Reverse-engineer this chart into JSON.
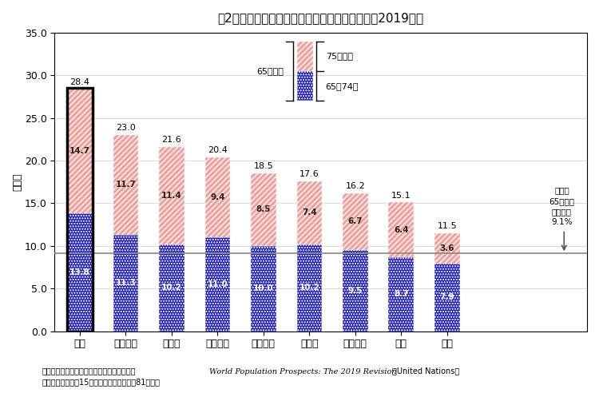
{
  "title": "図2　主要国における高齢者人口の割合の比較（2019年）",
  "ylabel": "（％）",
  "ylim": [
    0,
    35
  ],
  "yticks": [
    0.0,
    5.0,
    10.0,
    15.0,
    20.0,
    25.0,
    30.0,
    35.0
  ],
  "categories": [
    "日本",
    "イタリア",
    "ドイツ",
    "フランス",
    "イギリス",
    "カナダ",
    "アメリカ",
    "韓国",
    "中国"
  ],
  "values_65_74": [
    13.8,
    11.3,
    10.2,
    11.0,
    10.0,
    10.2,
    9.5,
    8.7,
    7.9
  ],
  "values_75plus": [
    14.7,
    11.7,
    11.4,
    9.4,
    8.5,
    7.4,
    6.7,
    6.4,
    3.6
  ],
  "totals": [
    28.4,
    23.0,
    21.6,
    20.4,
    18.5,
    17.6,
    16.2,
    15.1,
    11.5
  ],
  "color_65_74": "#2222bb",
  "color_75plus": "#f4a09a",
  "reference_line_y": 9.1,
  "reference_label_line1": "世界の",
  "reference_label_line2": "65歳以上",
  "reference_label_line3": "人口割合",
  "reference_label_line4": "9.1%",
  "legend_header": "65歳以上",
  "legend_label_75plus": "75歳以上",
  "legend_label_65_74": "65～74歳",
  "footer_line1a": "資料：日本の値は、「人口推計」、他国は、",
  "footer_line1b": "World Population Prospects: The 2019 Revision",
  "footer_line1c": "（United Nations）",
  "footer_line2": "注）日本は、９月15日現在、他国は、７月81日現在",
  "japan_border_color": "#000000",
  "bar_width": 0.55
}
